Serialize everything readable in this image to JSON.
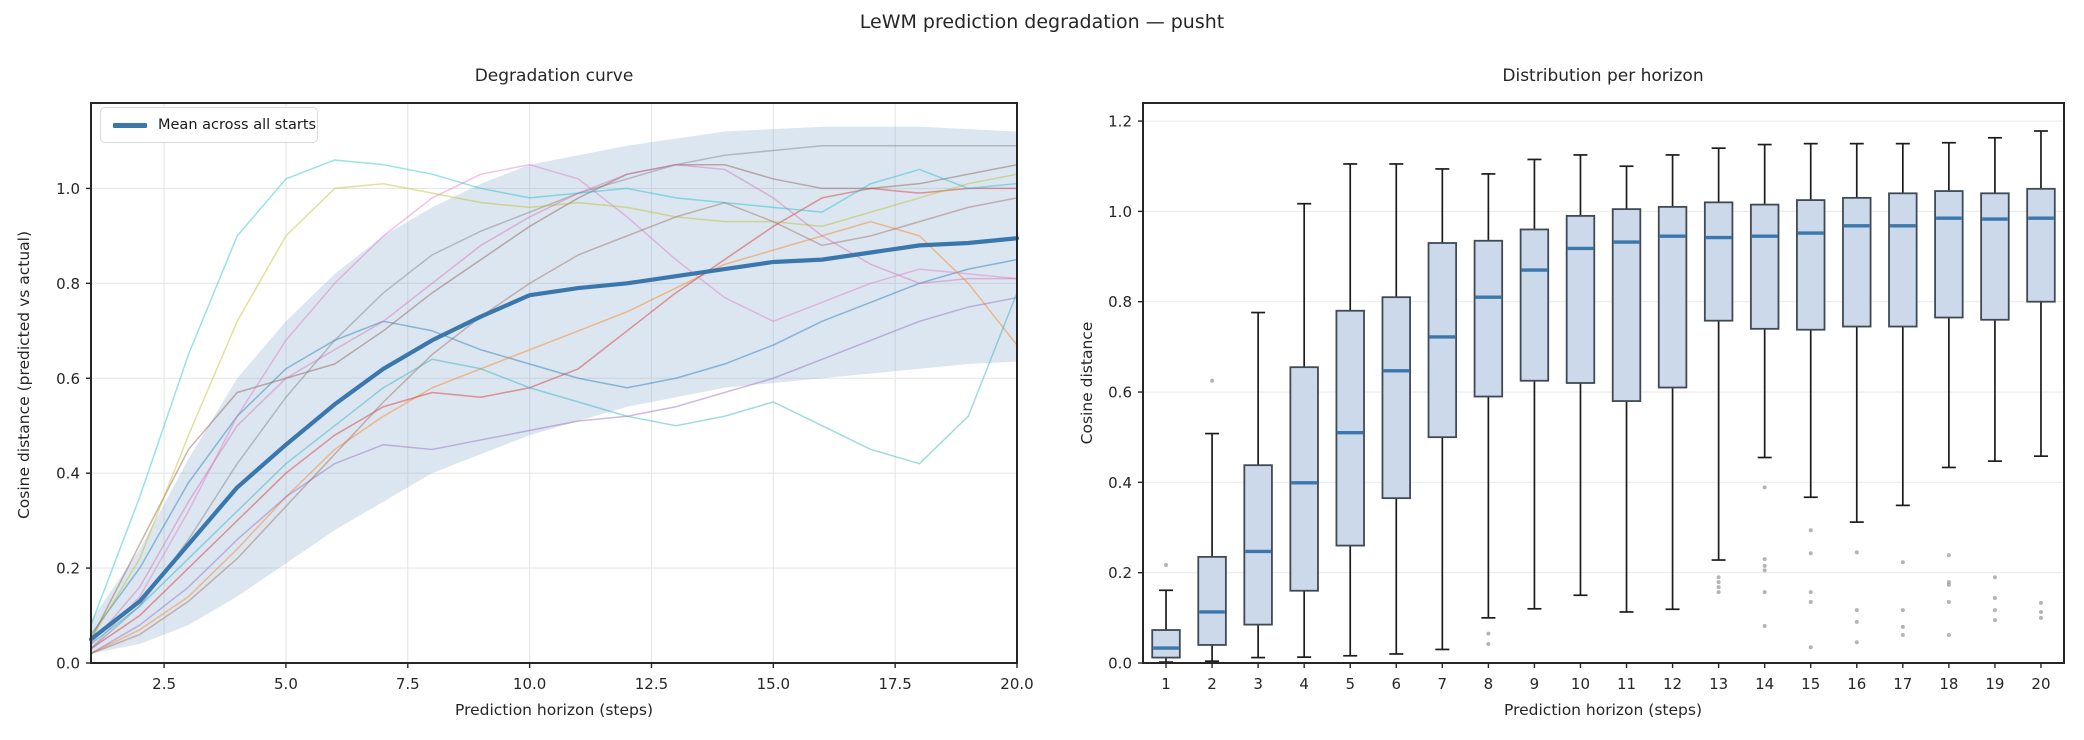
{
  "figure": {
    "suptitle": "LeWM prediction degradation — pusht",
    "background": "#ffffff",
    "accent_color": "#3a77ad",
    "grid_color": "#e6e6e6",
    "spine_color": "#262626"
  },
  "chart_data": [
    {
      "type": "line",
      "title": "Degradation curve",
      "xlabel": "Prediction horizon (steps)",
      "ylabel": "Cosine distance  (predicted vs actual)",
      "legend_position": "upper left",
      "legend_label": "Mean across all starts",
      "grid": true,
      "xlim": [
        1,
        20
      ],
      "ylim": [
        0,
        1.18
      ],
      "xticks": {
        "values": [
          2.5,
          5,
          7.5,
          10,
          12.5,
          15,
          17.5,
          20
        ],
        "labels": [
          "2.5",
          "5.0",
          "7.5",
          "10.0",
          "12.5",
          "15.0",
          "17.5",
          "20.0"
        ]
      },
      "yticks": {
        "values": [
          0,
          0.2,
          0.4,
          0.6,
          0.8,
          1.0
        ],
        "labels": [
          "0.0",
          "0.2",
          "0.4",
          "0.6",
          "0.8",
          "1.0"
        ]
      },
      "x": [
        1,
        2,
        3,
        4,
        5,
        6,
        7,
        8,
        9,
        10,
        11,
        12,
        13,
        14,
        15,
        16,
        17,
        18,
        19,
        20
      ],
      "mean_series": {
        "name": "Mean across all starts",
        "color": "#3a77ad",
        "line_width": 4.2,
        "values": [
          0.05,
          0.13,
          0.25,
          0.37,
          0.46,
          0.545,
          0.62,
          0.68,
          0.73,
          0.775,
          0.79,
          0.8,
          0.815,
          0.83,
          0.845,
          0.85,
          0.865,
          0.88,
          0.885,
          0.895
        ]
      },
      "band": {
        "meaning": "spread across starts",
        "color": "#7aa3cc",
        "opacity": 0.27,
        "lower": [
          0.02,
          0.04,
          0.08,
          0.14,
          0.21,
          0.28,
          0.34,
          0.4,
          0.44,
          0.48,
          0.51,
          0.54,
          0.56,
          0.58,
          0.59,
          0.6,
          0.61,
          0.62,
          0.63,
          0.635
        ],
        "upper": [
          0.09,
          0.24,
          0.43,
          0.6,
          0.72,
          0.82,
          0.9,
          0.96,
          1.01,
          1.05,
          1.07,
          1.09,
          1.105,
          1.12,
          1.125,
          1.13,
          1.13,
          1.13,
          1.125,
          1.12
        ]
      },
      "runs": [
        {
          "color": "#1f77b4",
          "values": [
            0.06,
            0.2,
            0.38,
            0.52,
            0.62,
            0.68,
            0.72,
            0.7,
            0.66,
            0.63,
            0.6,
            0.58,
            0.6,
            0.63,
            0.67,
            0.72,
            0.76,
            0.8,
            0.83,
            0.85
          ]
        },
        {
          "color": "#ff7f0e",
          "values": [
            0.02,
            0.07,
            0.14,
            0.24,
            0.35,
            0.45,
            0.52,
            0.58,
            0.62,
            0.66,
            0.7,
            0.74,
            0.79,
            0.84,
            0.87,
            0.9,
            0.93,
            0.9,
            0.8,
            0.67
          ]
        },
        {
          "color": "#d62728",
          "values": [
            0.03,
            0.1,
            0.2,
            0.3,
            0.4,
            0.48,
            0.54,
            0.57,
            0.56,
            0.58,
            0.62,
            0.7,
            0.78,
            0.85,
            0.92,
            0.98,
            1.0,
            0.99,
            1.0,
            1.0
          ]
        },
        {
          "color": "#9467bd",
          "values": [
            0.02,
            0.08,
            0.16,
            0.26,
            0.35,
            0.42,
            0.46,
            0.45,
            0.47,
            0.49,
            0.51,
            0.52,
            0.54,
            0.57,
            0.6,
            0.64,
            0.68,
            0.72,
            0.75,
            0.77
          ]
        },
        {
          "color": "#8c564b",
          "values": [
            0.05,
            0.25,
            0.45,
            0.57,
            0.6,
            0.63,
            0.7,
            0.78,
            0.85,
            0.92,
            0.98,
            1.03,
            1.05,
            1.05,
            1.02,
            1.0,
            1.0,
            1.01,
            1.03,
            1.05
          ]
        },
        {
          "color": "#e377c2",
          "values": [
            0.03,
            0.14,
            0.32,
            0.52,
            0.68,
            0.8,
            0.9,
            0.98,
            1.03,
            1.05,
            1.02,
            0.94,
            0.85,
            0.77,
            0.72,
            0.76,
            0.8,
            0.83,
            0.82,
            0.81
          ]
        },
        {
          "color": "#7f7f7f",
          "values": [
            0.03,
            0.12,
            0.26,
            0.42,
            0.56,
            0.68,
            0.78,
            0.86,
            0.91,
            0.95,
            0.99,
            1.02,
            1.05,
            1.07,
            1.08,
            1.09,
            1.09,
            1.09,
            1.09,
            1.09
          ]
        },
        {
          "color": "#bcbd22",
          "values": [
            0.05,
            0.22,
            0.48,
            0.72,
            0.9,
            1.0,
            1.01,
            0.99,
            0.97,
            0.96,
            0.97,
            0.96,
            0.94,
            0.93,
            0.93,
            0.92,
            0.95,
            0.98,
            1.01,
            1.03
          ]
        },
        {
          "color": "#17becf",
          "values": [
            0.08,
            0.35,
            0.65,
            0.9,
            1.02,
            1.06,
            1.05,
            1.03,
            1.0,
            0.98,
            0.99,
            1.0,
            0.98,
            0.97,
            0.96,
            0.95,
            1.01,
            1.04,
            1.0,
            1.01
          ]
        },
        {
          "color": "#2ab0bf",
          "values": [
            0.04,
            0.12,
            0.22,
            0.32,
            0.42,
            0.5,
            0.58,
            0.64,
            0.62,
            0.58,
            0.55,
            0.52,
            0.5,
            0.52,
            0.55,
            0.5,
            0.45,
            0.42,
            0.52,
            0.78
          ]
        },
        {
          "color": "#a0695a",
          "values": [
            0.02,
            0.06,
            0.13,
            0.22,
            0.33,
            0.44,
            0.55,
            0.65,
            0.73,
            0.8,
            0.86,
            0.9,
            0.94,
            0.97,
            0.93,
            0.88,
            0.9,
            0.93,
            0.96,
            0.98
          ]
        },
        {
          "color": "#d46fb3",
          "values": [
            0.04,
            0.16,
            0.34,
            0.5,
            0.6,
            0.66,
            0.72,
            0.8,
            0.88,
            0.94,
            0.99,
            1.03,
            1.05,
            1.04,
            0.98,
            0.9,
            0.84,
            0.8,
            0.81,
            0.81
          ]
        }
      ]
    },
    {
      "type": "box",
      "title": "Distribution per horizon",
      "xlabel": "Prediction horizon (steps)",
      "ylabel": "Cosine distance",
      "grid": "horizontal",
      "xlim": [
        0.5,
        20.5
      ],
      "ylim": [
        0,
        1.24
      ],
      "categories": [
        "1",
        "2",
        "3",
        "4",
        "5",
        "6",
        "7",
        "8",
        "9",
        "10",
        "11",
        "12",
        "13",
        "14",
        "15",
        "16",
        "17",
        "18",
        "19",
        "20"
      ],
      "yticks": {
        "values": [
          0,
          0.2,
          0.4,
          0.6,
          0.8,
          1.0,
          1.2
        ],
        "labels": [
          "0.0",
          "0.2",
          "0.4",
          "0.6",
          "0.8",
          "1.0",
          "1.2"
        ]
      },
      "style": {
        "box_fill": "#ccd9eb",
        "box_edge": "#3f4a55",
        "median_color": "#3a77ad",
        "whisker_color": "#1c1c1c",
        "flier_color": "#8c8c8c"
      },
      "boxes": [
        {
          "whislo": 0.002,
          "q1": 0.012,
          "med": 0.033,
          "q3": 0.073,
          "whishi": 0.161,
          "fliers": [
            0.217
          ]
        },
        {
          "whislo": 0.004,
          "q1": 0.04,
          "med": 0.113,
          "q3": 0.235,
          "whishi": 0.508,
          "fliers": [
            0.625
          ]
        },
        {
          "whislo": 0.012,
          "q1": 0.085,
          "med": 0.247,
          "q3": 0.438,
          "whishi": 0.776,
          "fliers": []
        },
        {
          "whislo": 0.013,
          "q1": 0.16,
          "med": 0.399,
          "q3": 0.655,
          "whishi": 1.017,
          "fliers": []
        },
        {
          "whislo": 0.016,
          "q1": 0.26,
          "med": 0.51,
          "q3": 0.78,
          "whishi": 1.105,
          "fliers": []
        },
        {
          "whislo": 0.02,
          "q1": 0.365,
          "med": 0.647,
          "q3": 0.81,
          "whishi": 1.105,
          "fliers": []
        },
        {
          "whislo": 0.03,
          "q1": 0.5,
          "med": 0.722,
          "q3": 0.93,
          "whishi": 1.094,
          "fliers": []
        },
        {
          "whislo": 0.1,
          "q1": 0.59,
          "med": 0.81,
          "q3": 0.935,
          "whishi": 1.083,
          "fliers": [
            0.065,
            0.042
          ]
        },
        {
          "whislo": 0.12,
          "q1": 0.625,
          "med": 0.87,
          "q3": 0.96,
          "whishi": 1.115,
          "fliers": []
        },
        {
          "whislo": 0.15,
          "q1": 0.62,
          "med": 0.918,
          "q3": 0.99,
          "whishi": 1.125,
          "fliers": []
        },
        {
          "whislo": 0.113,
          "q1": 0.58,
          "med": 0.932,
          "q3": 1.005,
          "whishi": 1.1,
          "fliers": []
        },
        {
          "whislo": 0.119,
          "q1": 0.61,
          "med": 0.945,
          "q3": 1.01,
          "whishi": 1.125,
          "fliers": []
        },
        {
          "whislo": 0.228,
          "q1": 0.758,
          "med": 0.942,
          "q3": 1.02,
          "whishi": 1.14,
          "fliers": [
            0.19,
            0.179,
            0.168,
            0.157
          ]
        },
        {
          "whislo": 0.455,
          "q1": 0.74,
          "med": 0.945,
          "q3": 1.015,
          "whishi": 1.148,
          "fliers": [
            0.389,
            0.23,
            0.215,
            0.205,
            0.157,
            0.082
          ]
        },
        {
          "whislo": 0.367,
          "q1": 0.738,
          "med": 0.952,
          "q3": 1.025,
          "whishi": 1.15,
          "fliers": [
            0.294,
            0.243,
            0.157,
            0.135,
            0.035
          ]
        },
        {
          "whislo": 0.312,
          "q1": 0.745,
          "med": 0.968,
          "q3": 1.03,
          "whishi": 1.15,
          "fliers": [
            0.245,
            0.117,
            0.091,
            0.046
          ]
        },
        {
          "whislo": 0.349,
          "q1": 0.745,
          "med": 0.968,
          "q3": 1.04,
          "whishi": 1.15,
          "fliers": [
            0.223,
            0.117,
            0.08,
            0.062
          ]
        },
        {
          "whislo": 0.433,
          "q1": 0.765,
          "med": 0.985,
          "q3": 1.045,
          "whishi": 1.152,
          "fliers": [
            0.239,
            0.179,
            0.173,
            0.135,
            0.062
          ]
        },
        {
          "whislo": 0.447,
          "q1": 0.76,
          "med": 0.983,
          "q3": 1.04,
          "whishi": 1.163,
          "fliers": [
            0.19,
            0.144,
            0.117,
            0.095
          ]
        },
        {
          "whislo": 0.458,
          "q1": 0.8,
          "med": 0.985,
          "q3": 1.05,
          "whishi": 1.178,
          "fliers": [
            0.133,
            0.113,
            0.1
          ]
        }
      ]
    }
  ]
}
